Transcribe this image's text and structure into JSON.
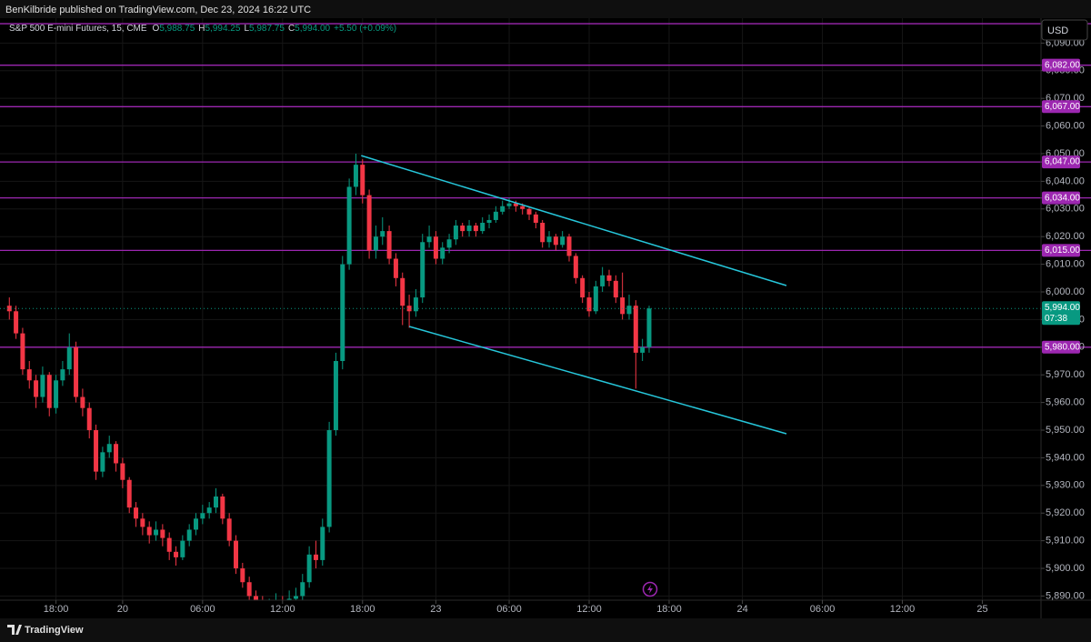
{
  "header": {
    "publisher": "BenKilbride published on TradingView.com, Dec 23, 2024 16:22 UTC",
    "brand": "TradingView"
  },
  "chart_data": {
    "type": "candlestick",
    "title": "S&P 500 E-mini Futures, 15, CME",
    "quote": [
      {
        "label": "O",
        "value": "5,988.75"
      },
      {
        "label": "H",
        "value": "5,994.25"
      },
      {
        "label": "L",
        "value": "5,987.75"
      },
      {
        "label": "C",
        "value": "5,994.00"
      }
    ],
    "change": "+5.50 (+0.09%)",
    "currency": "USD",
    "up_color": "#089981",
    "down_color": "#f23645",
    "grid": true,
    "ohlc": [
      [
        5995,
        5998,
        5990,
        5993
      ],
      [
        5993,
        5995,
        5983,
        5985
      ],
      [
        5985,
        5987,
        5970,
        5972
      ],
      [
        5972,
        5975,
        5965,
        5968
      ],
      [
        5968,
        5970,
        5958,
        5962
      ],
      [
        5962,
        5973,
        5960,
        5970
      ],
      [
        5970,
        5971,
        5955,
        5958
      ],
      [
        5958,
        5970,
        5956,
        5968
      ],
      [
        5968,
        5975,
        5966,
        5972
      ],
      [
        5972,
        5985,
        5970,
        5980
      ],
      [
        5980,
        5982,
        5960,
        5962
      ],
      [
        5962,
        5965,
        5955,
        5958
      ],
      [
        5958,
        5960,
        5947,
        5950
      ],
      [
        5950,
        5952,
        5932,
        5935
      ],
      [
        5935,
        5944,
        5933,
        5942
      ],
      [
        5942,
        5948,
        5940,
        5945
      ],
      [
        5945,
        5946,
        5935,
        5938
      ],
      [
        5938,
        5940,
        5929,
        5932
      ],
      [
        5932,
        5933,
        5920,
        5922
      ],
      [
        5922,
        5924,
        5915,
        5918
      ],
      [
        5918,
        5920,
        5912,
        5915
      ],
      [
        5915,
        5917,
        5909,
        5912
      ],
      [
        5912,
        5917,
        5910,
        5914
      ],
      [
        5914,
        5916,
        5908,
        5911
      ],
      [
        5911,
        5913,
        5903,
        5906
      ],
      [
        5906,
        5908,
        5901,
        5904
      ],
      [
        5904,
        5912,
        5903,
        5910
      ],
      [
        5910,
        5916,
        5908,
        5914
      ],
      [
        5914,
        5920,
        5912,
        5918
      ],
      [
        5918,
        5923,
        5916,
        5920
      ],
      [
        5920,
        5924,
        5918,
        5922
      ],
      [
        5922,
        5929,
        5920,
        5926
      ],
      [
        5926,
        5927,
        5916,
        5918
      ],
      [
        5918,
        5920,
        5908,
        5910
      ],
      [
        5910,
        5912,
        5898,
        5900
      ],
      [
        5900,
        5902,
        5893,
        5895
      ],
      [
        5895,
        5897,
        5888,
        5890
      ],
      [
        5890,
        5892,
        5885,
        5887
      ],
      [
        5887,
        5890,
        5884,
        5886
      ],
      [
        5886,
        5889,
        5883,
        5886
      ],
      [
        5886,
        5891,
        5885,
        5888
      ],
      [
        5888,
        5890,
        5885,
        5887
      ],
      [
        5887,
        5892,
        5885,
        5889
      ],
      [
        5889,
        5893,
        5887,
        5890
      ],
      [
        5890,
        5898,
        5888,
        5895
      ],
      [
        5895,
        5908,
        5893,
        5905
      ],
      [
        5905,
        5910,
        5900,
        5903
      ],
      [
        5903,
        5918,
        5901,
        5915
      ],
      [
        5915,
        5953,
        5913,
        5950
      ],
      [
        5950,
        5978,
        5948,
        5975
      ],
      [
        5975,
        6013,
        5972,
        6010
      ],
      [
        6010,
        6041,
        6008,
        6038
      ],
      [
        6038,
        6050,
        6035,
        6046
      ],
      [
        6046,
        6048,
        6032,
        6035
      ],
      [
        6035,
        6037,
        6012,
        6015
      ],
      [
        6015,
        6024,
        6012,
        6020
      ],
      [
        6020,
        6027,
        6017,
        6022
      ],
      [
        6022,
        6024,
        6010,
        6012
      ],
      [
        6012,
        6014,
        6002,
        6005
      ],
      [
        6005,
        6007,
        5988,
        5995
      ],
      [
        5995,
        5999,
        5987,
        5993
      ],
      [
        5993,
        6001,
        5991,
        5998
      ],
      [
        5998,
        6021,
        5996,
        6018
      ],
      [
        6018,
        6024,
        6016,
        6020
      ],
      [
        6020,
        6022,
        6010,
        6012
      ],
      [
        6012,
        6018,
        6010,
        6016
      ],
      [
        6016,
        6021,
        6014,
        6019
      ],
      [
        6019,
        6026,
        6017,
        6024
      ],
      [
        6024,
        6025,
        6020,
        6022
      ],
      [
        6022,
        6026,
        6020,
        6024
      ],
      [
        6024,
        6025,
        6020,
        6022
      ],
      [
        6022,
        6027,
        6021,
        6025
      ],
      [
        6025,
        6028,
        6023,
        6026
      ],
      [
        6026,
        6031,
        6025,
        6029
      ],
      [
        6029,
        6033,
        6028,
        6031
      ],
      [
        6031,
        6034,
        6030,
        6032
      ],
      [
        6032,
        6033,
        6029,
        6031
      ],
      [
        6031,
        6032,
        6028,
        6030
      ],
      [
        6030,
        6031,
        6026,
        6028
      ],
      [
        6028,
        6029,
        6023,
        6025
      ],
      [
        6025,
        6026,
        6016,
        6018
      ],
      [
        6018,
        6022,
        6016,
        6020
      ],
      [
        6020,
        6021,
        6015,
        6017
      ],
      [
        6017,
        6022,
        6016,
        6020
      ],
      [
        6020,
        6021,
        6011,
        6013
      ],
      [
        6013,
        6014,
        6003,
        6005
      ],
      [
        6005,
        6006,
        5996,
        5998
      ],
      [
        5998,
        6000,
        5991,
        5993
      ],
      [
        5993,
        6004,
        5992,
        6002
      ],
      [
        6002,
        6009,
        6000,
        6006
      ],
      [
        6006,
        6008,
        6002,
        6004
      ],
      [
        6004,
        6006,
        5996,
        5998
      ],
      [
        5998,
        6007,
        5990,
        5992
      ],
      [
        5992,
        5999,
        5990,
        5995
      ],
      [
        5995,
        5997,
        5965,
        5978
      ],
      [
        5978,
        5983,
        5975,
        5980
      ],
      [
        5980,
        5995,
        5978,
        5994
      ]
    ],
    "xlim": [
      -1.4,
      154.8
    ],
    "xticks": [
      {
        "value": 7,
        "label": "18:00"
      },
      {
        "value": 17,
        "label": "20"
      },
      {
        "value": 29,
        "label": "06:00"
      },
      {
        "value": 41,
        "label": "12:00"
      },
      {
        "value": 53,
        "label": "18:00"
      },
      {
        "value": 64,
        "label": "23"
      },
      {
        "value": 75,
        "label": "06:00"
      },
      {
        "value": 87,
        "label": "12:00"
      },
      {
        "value": 99,
        "label": "18:00"
      },
      {
        "value": 110,
        "label": "24"
      },
      {
        "value": 122,
        "label": "06:00"
      },
      {
        "value": 134,
        "label": "12:00"
      },
      {
        "value": 146,
        "label": "25"
      }
    ],
    "ylim": [
      5888.5,
      6099
    ],
    "yticks": [
      {
        "value": 6090,
        "label": "6,090.00"
      },
      {
        "value": 6080,
        "label": "6,080.00"
      },
      {
        "value": 6070,
        "label": "6,070.00"
      },
      {
        "value": 6060,
        "label": "6,060.00"
      },
      {
        "value": 6050,
        "label": "6,050.00"
      },
      {
        "value": 6040,
        "label": "6,040.00"
      },
      {
        "value": 6030,
        "label": "6,030.00"
      },
      {
        "value": 6020,
        "label": "6,020.00"
      },
      {
        "value": 6010,
        "label": "6,010.00"
      },
      {
        "value": 6000,
        "label": "6,000.00"
      },
      {
        "value": 5990,
        "label": "5,990.00"
      },
      {
        "value": 5980,
        "label": "5,980.00"
      },
      {
        "value": 5970,
        "label": "5,970.00"
      },
      {
        "value": 5960,
        "label": "5,960.00"
      },
      {
        "value": 5950,
        "label": "5,950.00"
      },
      {
        "value": 5940,
        "label": "5,940.00"
      },
      {
        "value": 5930,
        "label": "5,930.00"
      },
      {
        "value": 5920,
        "label": "5,920.00"
      },
      {
        "value": 5910,
        "label": "5,910.00"
      },
      {
        "value": 5900,
        "label": "5,900.00"
      },
      {
        "value": 5890,
        "label": "5,890.00"
      }
    ],
    "levels": {
      "color": "#9c27b0",
      "values": [
        6097,
        6082,
        6067,
        6047,
        6034,
        6015,
        5980
      ],
      "value_labels": [
        null,
        "6,082.00",
        "6,067.00",
        "6,047.00",
        "6,034.00",
        "6,015.00",
        "5,980.00"
      ]
    },
    "trendlines": {
      "color": "#26c6da",
      "lines": [
        {
          "x": [
            52.8,
            116.6
          ],
          "y": [
            6049.3,
            6002.3
          ]
        },
        {
          "x": [
            60,
            116.6
          ],
          "y": [
            5987.5,
            5948.7
          ]
        }
      ]
    },
    "last": {
      "value": 5994,
      "label": "5,994.00",
      "countdown": "07:38",
      "color": "#089981"
    }
  }
}
